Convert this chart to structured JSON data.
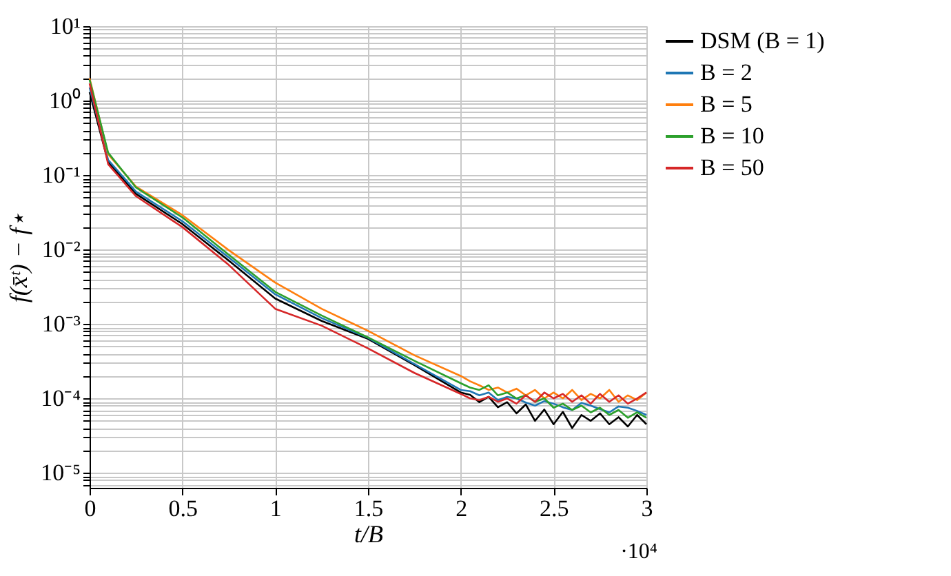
{
  "chart_data": {
    "type": "line",
    "xlabel": "t/B",
    "ylabel": "f(x̄ᵗ) − f⋆",
    "annotations": [
      "·10⁴"
    ],
    "x": [
      0,
      0.1,
      0.25,
      0.5,
      0.75,
      1,
      1.25,
      1.5,
      1.75,
      2,
      2.05,
      2.1,
      2.15,
      2.2,
      2.25,
      2.3,
      2.35,
      2.4,
      2.45,
      2.5,
      2.55,
      2.6,
      2.65,
      2.7,
      2.75,
      2.8,
      2.85,
      2.9,
      2.95,
      3
    ],
    "series": [
      {
        "name": "DSM (B = 1)",
        "color": "#000000",
        "values": [
          1.3,
          0.15,
          0.056,
          0.022,
          0.0071,
          0.0022,
          0.0011,
          0.00063,
          0.00028,
          0.00012,
          0.000112,
          8.9e-05,
          0.000105,
          7.6e-05,
          8.9e-05,
          6.3e-05,
          8.3e-05,
          5e-05,
          7.1e-05,
          4.5e-05,
          6.6e-05,
          4e-05,
          6e-05,
          5e-05,
          6.3e-05,
          4.5e-05,
          5.6e-05,
          4.2e-05,
          6e-05,
          4.5e-05
        ]
      },
      {
        "name": "B = 2",
        "color": "#1f77b4",
        "values": [
          1.5,
          0.16,
          0.06,
          0.024,
          0.0078,
          0.0025,
          0.0012,
          0.00065,
          0.00029,
          0.00013,
          0.000125,
          0.00011,
          0.00012,
          9.5e-05,
          0.000105,
          0.0001,
          8.8e-05,
          8e-05,
          9.2e-05,
          8.5e-05,
          7.6e-05,
          7e-05,
          8.7e-05,
          8e-05,
          7.2e-05,
          6.5e-05,
          7.8e-05,
          7.5e-05,
          6.8e-05,
          6e-05
        ]
      },
      {
        "name": "B = 5",
        "color": "#ff7f0e",
        "values": [
          2.0,
          0.19,
          0.07,
          0.029,
          0.0098,
          0.0036,
          0.0016,
          0.00081,
          0.00038,
          0.0002,
          0.00017,
          0.00015,
          0.00013,
          0.00014,
          0.00012,
          0.000135,
          0.00011,
          0.00013,
          0.0001,
          0.00012,
          0.0001,
          0.00013,
          9.5e-05,
          0.000115,
          0.0001,
          0.00013,
          9e-05,
          0.00011,
          9.5e-05,
          0.00012
        ]
      },
      {
        "name": "B = 10",
        "color": "#2ca02c",
        "values": [
          1.9,
          0.2,
          0.068,
          0.027,
          0.0085,
          0.0027,
          0.0013,
          0.00066,
          0.00032,
          0.00016,
          0.00014,
          0.00013,
          0.00015,
          0.00011,
          0.00012,
          0.0001,
          0.00011,
          9e-05,
          0.0001,
          7.5e-05,
          8.5e-05,
          7e-05,
          8e-05,
          6.5e-05,
          7.5e-05,
          6e-05,
          7e-05,
          5.5e-05,
          6.5e-05,
          5.5e-05
        ]
      },
      {
        "name": "B = 50",
        "color": "#d62728",
        "values": [
          1.7,
          0.14,
          0.052,
          0.02,
          0.0062,
          0.0016,
          0.00095,
          0.00047,
          0.00022,
          0.000115,
          0.0001,
          9.5e-05,
          0.000105,
          9e-05,
          0.0001,
          8.5e-05,
          0.00011,
          9e-05,
          0.00012,
          0.0001,
          0.000115,
          9e-05,
          0.00011,
          8.5e-05,
          0.000115,
          9e-05,
          0.00011,
          8.5e-05,
          0.0001,
          0.00012
        ]
      }
    ],
    "log": "y",
    "grid": true,
    "legend": "top right",
    "xlim": [
      0,
      3
    ],
    "xticks": [
      0,
      0.5,
      1,
      1.5,
      2,
      2.5,
      3
    ],
    "ylim": [
      6.3e-06,
      10
    ],
    "yticks": [
      {
        "value": 7e-06,
        "label": null
      },
      {
        "value": 8e-06,
        "label": null
      },
      {
        "value": 9e-06,
        "label": null
      },
      {
        "value": 1e-05,
        "label": "10⁻⁵"
      },
      {
        "value": 2e-05,
        "label": null
      },
      {
        "value": 3e-05,
        "label": null
      },
      {
        "value": 4e-05,
        "label": null
      },
      {
        "value": 5e-05,
        "label": null
      },
      {
        "value": 6e-05,
        "label": null
      },
      {
        "value": 7e-05,
        "label": null
      },
      {
        "value": 8e-05,
        "label": null
      },
      {
        "value": 9e-05,
        "label": null
      },
      {
        "value": 0.0001,
        "label": "10⁻⁴"
      },
      {
        "value": 0.0002,
        "label": null
      },
      {
        "value": 0.0003,
        "label": null
      },
      {
        "value": 0.0004,
        "label": null
      },
      {
        "value": 0.0005,
        "label": null
      },
      {
        "value": 0.0006,
        "label": null
      },
      {
        "value": 0.0007,
        "label": null
      },
      {
        "value": 0.0008,
        "label": null
      },
      {
        "value": 0.0009,
        "label": null
      },
      {
        "value": 0.001,
        "label": "10⁻³"
      },
      {
        "value": 0.002,
        "label": null
      },
      {
        "value": 0.003,
        "label": null
      },
      {
        "value": 0.004,
        "label": null
      },
      {
        "value": 0.005,
        "label": null
      },
      {
        "value": 0.006,
        "label": null
      },
      {
        "value": 0.007,
        "label": null
      },
      {
        "value": 0.008,
        "label": null
      },
      {
        "value": 0.009,
        "label": null
      },
      {
        "value": 0.01,
        "label": "10⁻²"
      },
      {
        "value": 0.02,
        "label": null
      },
      {
        "value": 0.03,
        "label": null
      },
      {
        "value": 0.04,
        "label": null
      },
      {
        "value": 0.05,
        "label": null
      },
      {
        "value": 0.06,
        "label": null
      },
      {
        "value": 0.07,
        "label": null
      },
      {
        "value": 0.08,
        "label": null
      },
      {
        "value": 0.09,
        "label": null
      },
      {
        "value": 0.1,
        "label": "10⁻¹"
      },
      {
        "value": 0.2,
        "label": null
      },
      {
        "value": 0.3,
        "label": null
      },
      {
        "value": 0.4,
        "label": null
      },
      {
        "value": 0.5,
        "label": null
      },
      {
        "value": 0.6,
        "label": null
      },
      {
        "value": 0.7,
        "label": null
      },
      {
        "value": 0.8,
        "label": null
      },
      {
        "value": 0.9,
        "label": null
      },
      {
        "value": 1,
        "label": "10⁰"
      },
      {
        "value": 2,
        "label": null
      },
      {
        "value": 3,
        "label": null
      },
      {
        "value": 4,
        "label": null
      },
      {
        "value": 5,
        "label": null
      },
      {
        "value": 6,
        "label": null
      },
      {
        "value": 7,
        "label": null
      },
      {
        "value": 8,
        "label": null
      },
      {
        "value": 9,
        "label": null
      },
      {
        "value": 10,
        "label": "10¹"
      }
    ]
  }
}
